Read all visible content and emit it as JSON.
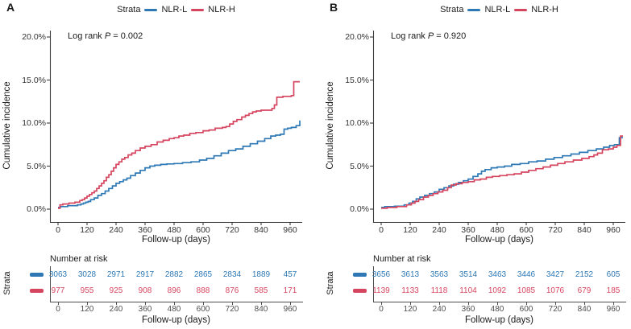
{
  "colors": {
    "nlr_l": "#2e79b5",
    "nlr_h": "#d6455f",
    "axis": "#3c3c3c",
    "tick_text": "#333333"
  },
  "panels": [
    {
      "label": "A",
      "legend": {
        "title": "Strata",
        "items": [
          {
            "name": "NLR-L"
          },
          {
            "name": "NLR-H"
          }
        ]
      },
      "annotation": {
        "prefix": "Log rank ",
        "stat": "P",
        "rest": " = 0.002"
      },
      "ylabel": "Cumulative incidence",
      "xlabel": "Follow-up (days)",
      "risk": {
        "title": "Number at risk",
        "strata": "Strata",
        "xlabel": "Follow-up (days)"
      }
    },
    {
      "label": "B",
      "legend": {
        "title": "Strata",
        "items": [
          {
            "name": "NLR-L"
          },
          {
            "name": "NLR-H"
          }
        ]
      },
      "annotation": {
        "prefix": "Log rank ",
        "stat": "P",
        "rest": " = 0.920"
      },
      "ylabel": "Cumulative incidence",
      "xlabel": "Follow-up (days)",
      "risk": {
        "title": "Number at risk",
        "strata": "Strata",
        "xlabel": "Follow-up (days)"
      }
    }
  ],
  "chart_data": [
    {
      "type": "line",
      "panel": "A",
      "subtype": "cumulative-incidence-step",
      "annotation": "Log rank P = 0.002",
      "xlabel": "Follow-up (days)",
      "ylabel": "Cumulative incidence",
      "xlim": [
        0,
        1010
      ],
      "ylim": [
        0,
        20
      ],
      "grid": false,
      "legend": {
        "title": "Strata",
        "position": "top",
        "entries": [
          "NLR-L",
          "NLR-H"
        ]
      },
      "xticks": [
        0,
        120,
        240,
        360,
        480,
        600,
        720,
        840,
        960
      ],
      "yticks": [
        {
          "value": 0,
          "label": "0.0%"
        },
        {
          "value": 5,
          "label": "5.0%"
        },
        {
          "value": 10,
          "label": "10.0%"
        },
        {
          "value": 15,
          "label": "15.0%"
        },
        {
          "value": 20,
          "label": "20.0%"
        }
      ],
      "series": [
        {
          "name": "NLR-L",
          "color_key": "nlr_l",
          "x": [
            0,
            10,
            40,
            80,
            95,
            105,
            115,
            125,
            135,
            150,
            165,
            180,
            195,
            210,
            225,
            240,
            255,
            270,
            285,
            300,
            320,
            340,
            360,
            380,
            400,
            425,
            450,
            480,
            515,
            550,
            585,
            615,
            645,
            675,
            705,
            735,
            765,
            795,
            825,
            855,
            880,
            900,
            920,
            935,
            950,
            965,
            985,
            1000
          ],
          "y": [
            0.2,
            0.3,
            0.4,
            0.5,
            0.6,
            0.7,
            0.8,
            0.9,
            1.1,
            1.3,
            1.6,
            1.8,
            2.1,
            2.4,
            2.7,
            3.0,
            3.2,
            3.4,
            3.6,
            3.9,
            4.2,
            4.5,
            4.8,
            5.0,
            5.1,
            5.2,
            5.25,
            5.3,
            5.4,
            5.5,
            5.7,
            5.9,
            6.2,
            6.5,
            6.8,
            7.0,
            7.3,
            7.6,
            7.9,
            8.2,
            8.5,
            8.6,
            8.7,
            9.3,
            9.4,
            9.5,
            9.7,
            10.3
          ]
        },
        {
          "name": "NLR-H",
          "color_key": "nlr_h",
          "x": [
            0,
            8,
            20,
            45,
            70,
            90,
            100,
            110,
            120,
            130,
            140,
            150,
            160,
            170,
            180,
            190,
            200,
            210,
            220,
            230,
            240,
            252,
            264,
            276,
            290,
            305,
            320,
            340,
            360,
            385,
            410,
            435,
            460,
            480,
            500,
            520,
            545,
            570,
            600,
            625,
            650,
            665,
            680,
            695,
            710,
            725,
            740,
            760,
            775,
            790,
            805,
            820,
            840,
            865,
            885,
            895,
            905,
            930,
            955,
            965,
            975,
            1000
          ],
          "y": [
            0.1,
            0.5,
            0.6,
            0.7,
            0.8,
            1.0,
            1.1,
            1.3,
            1.5,
            1.7,
            1.9,
            2.1,
            2.4,
            2.7,
            3.0,
            3.3,
            3.7,
            4.0,
            4.4,
            4.8,
            5.2,
            5.5,
            5.8,
            6.0,
            6.3,
            6.5,
            6.8,
            7.1,
            7.3,
            7.5,
            7.8,
            8.0,
            8.2,
            8.3,
            8.5,
            8.6,
            8.8,
            8.9,
            9.1,
            9.2,
            9.4,
            9.4,
            9.5,
            9.6,
            9.9,
            10.2,
            10.4,
            10.7,
            10.9,
            11.1,
            11.3,
            11.4,
            11.5,
            11.5,
            11.7,
            12.1,
            13.0,
            13.1,
            13.1,
            13.2,
            14.8,
            14.8
          ]
        }
      ],
      "number_at_risk": {
        "title": "Number at risk",
        "strata_label": "Strata",
        "xlabel": "Follow-up (days)",
        "times": [
          0,
          120,
          240,
          360,
          480,
          600,
          720,
          840,
          960
        ],
        "rows": [
          {
            "name": "NLR-L",
            "color_key": "nlr_l",
            "counts": [
              3063,
              3028,
              2971,
              2917,
              2882,
              2865,
              2834,
              1889,
              457
            ]
          },
          {
            "name": "NLR-H",
            "color_key": "nlr_h",
            "counts": [
              977,
              955,
              925,
              908,
              896,
              888,
              876,
              585,
              171
            ]
          }
        ]
      }
    },
    {
      "type": "line",
      "panel": "B",
      "subtype": "cumulative-incidence-step",
      "annotation": "Log rank P = 0.920",
      "xlabel": "Follow-up (days)",
      "ylabel": "Cumulative incidence",
      "xlim": [
        0,
        1010
      ],
      "ylim": [
        0,
        20
      ],
      "grid": false,
      "legend": {
        "title": "Strata",
        "position": "top",
        "entries": [
          "NLR-L",
          "NLR-H"
        ]
      },
      "xticks": [
        0,
        120,
        240,
        360,
        480,
        600,
        720,
        840,
        960
      ],
      "yticks": [
        {
          "value": 0,
          "label": "0.0%"
        },
        {
          "value": 5,
          "label": "5.0%"
        },
        {
          "value": 10,
          "label": "10.0%"
        },
        {
          "value": 15,
          "label": "15.0%"
        },
        {
          "value": 20,
          "label": "20.0%"
        }
      ],
      "series": [
        {
          "name": "NLR-L",
          "color_key": "nlr_l",
          "x": [
            0,
            15,
            55,
            95,
            115,
            130,
            145,
            160,
            180,
            200,
            220,
            240,
            260,
            280,
            300,
            320,
            340,
            360,
            380,
            400,
            415,
            430,
            455,
            480,
            510,
            540,
            575,
            610,
            645,
            680,
            715,
            750,
            785,
            820,
            855,
            890,
            920,
            945,
            965,
            985,
            1000
          ],
          "y": [
            0.2,
            0.3,
            0.35,
            0.5,
            0.7,
            0.9,
            1.2,
            1.4,
            1.6,
            1.8,
            2.0,
            2.3,
            2.5,
            2.7,
            2.9,
            3.1,
            3.3,
            3.5,
            3.8,
            4.1,
            4.4,
            4.6,
            4.8,
            4.9,
            5.0,
            5.2,
            5.3,
            5.5,
            5.6,
            5.8,
            6.0,
            6.2,
            6.4,
            6.6,
            6.8,
            7.0,
            7.2,
            7.4,
            7.5,
            8.3,
            8.3
          ]
        },
        {
          "name": "NLR-H",
          "color_key": "nlr_h",
          "x": [
            0,
            25,
            65,
            105,
            125,
            140,
            155,
            175,
            195,
            215,
            235,
            255,
            275,
            290,
            310,
            335,
            360,
            385,
            410,
            435,
            460,
            490,
            520,
            550,
            580,
            610,
            640,
            670,
            700,
            730,
            760,
            795,
            830,
            860,
            880,
            895,
            915,
            940,
            960,
            975,
            990,
            1000
          ],
          "y": [
            0.1,
            0.2,
            0.3,
            0.5,
            0.7,
            0.9,
            1.1,
            1.4,
            1.6,
            1.8,
            2.0,
            2.2,
            2.5,
            2.8,
            2.95,
            3.1,
            3.2,
            3.4,
            3.5,
            3.7,
            3.8,
            3.9,
            4.0,
            4.1,
            4.3,
            4.5,
            4.7,
            4.9,
            5.1,
            5.3,
            5.5,
            5.7,
            5.9,
            6.1,
            6.3,
            6.5,
            6.9,
            7.0,
            7.2,
            7.4,
            8.5,
            8.5
          ]
        }
      ],
      "number_at_risk": {
        "title": "Number at risk",
        "strata_label": "Strata",
        "xlabel": "Follow-up (days)",
        "times": [
          0,
          120,
          240,
          360,
          480,
          600,
          720,
          840,
          960
        ],
        "rows": [
          {
            "name": "NLR-L",
            "color_key": "nlr_l",
            "counts": [
              3656,
              3613,
              3563,
              3514,
              3463,
              3446,
              3427,
              2152,
              605
            ]
          },
          {
            "name": "NLR-H",
            "color_key": "nlr_h",
            "counts": [
              1139,
              1133,
              1118,
              1104,
              1092,
              1085,
              1076,
              679,
              185
            ]
          }
        ]
      }
    }
  ]
}
